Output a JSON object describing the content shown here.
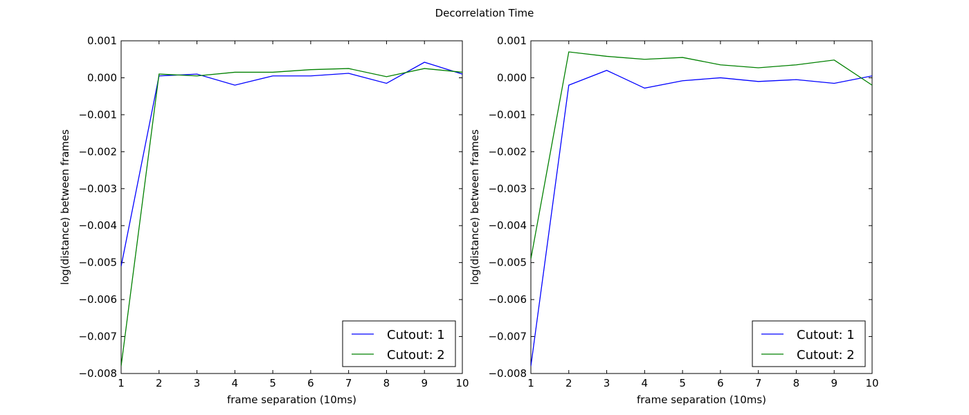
{
  "figure": {
    "title": "Decorrelation Time"
  },
  "chart_data": [
    {
      "type": "line",
      "title": "",
      "xlabel": "frame separation (10ms)",
      "ylabel": "log(distance) between frames",
      "xlim": [
        1,
        10
      ],
      "ylim": [
        -0.008,
        0.001
      ],
      "x": [
        1,
        2,
        3,
        4,
        5,
        6,
        7,
        8,
        9,
        10
      ],
      "xticks": [
        "1",
        "2",
        "3",
        "4",
        "5",
        "6",
        "7",
        "8",
        "9",
        "10"
      ],
      "yticks": [
        "0.001",
        "0.000",
        "−0.001",
        "−0.002",
        "−0.003",
        "−0.004",
        "−0.005",
        "−0.006",
        "−0.007",
        "−0.008"
      ],
      "ytick_values": [
        0.001,
        0.0,
        -0.001,
        -0.002,
        -0.003,
        -0.004,
        -0.005,
        -0.006,
        -0.007,
        -0.008
      ],
      "grid": false,
      "legend_loc": "lower-right",
      "series": [
        {
          "name": "Cutout: 1",
          "color": "#0000ff",
          "values": [
            -0.0051,
            5e-05,
            0.0001,
            -0.0002,
            5e-05,
            5e-05,
            0.00012,
            -0.00015,
            0.00042,
            0.0001
          ]
        },
        {
          "name": "Cutout: 2",
          "color": "#008000",
          "values": [
            -0.0078,
            0.0001,
            5e-05,
            0.00015,
            0.00015,
            0.00022,
            0.00025,
            3e-05,
            0.00025,
            0.00015
          ]
        }
      ]
    },
    {
      "type": "line",
      "title": "",
      "xlabel": "frame separation (10ms)",
      "ylabel": "log(distance) between frames",
      "xlim": [
        1,
        10
      ],
      "ylim": [
        -0.008,
        0.001
      ],
      "x": [
        1,
        2,
        3,
        4,
        5,
        6,
        7,
        8,
        9,
        10
      ],
      "xticks": [
        "1",
        "2",
        "3",
        "4",
        "5",
        "6",
        "7",
        "8",
        "9",
        "10"
      ],
      "yticks": [
        "0.001",
        "0.000",
        "−0.001",
        "−0.002",
        "−0.003",
        "−0.004",
        "−0.005",
        "−0.006",
        "−0.007",
        "−0.008"
      ],
      "ytick_values": [
        0.001,
        0.0,
        -0.001,
        -0.002,
        -0.003,
        -0.004,
        -0.005,
        -0.006,
        -0.007,
        -0.008
      ],
      "grid": false,
      "legend_loc": "lower-right",
      "series": [
        {
          "name": "Cutout: 1",
          "color": "#0000ff",
          "values": [
            -0.0078,
            -0.0002,
            0.0002,
            -0.00028,
            -8e-05,
            0.0,
            -0.0001,
            -5e-05,
            -0.00015,
            5e-05
          ]
        },
        {
          "name": "Cutout: 2",
          "color": "#008000",
          "values": [
            -0.0049,
            0.0007,
            0.00058,
            0.0005,
            0.00055,
            0.00035,
            0.00027,
            0.00035,
            0.00048,
            -0.0002
          ]
        }
      ]
    }
  ]
}
